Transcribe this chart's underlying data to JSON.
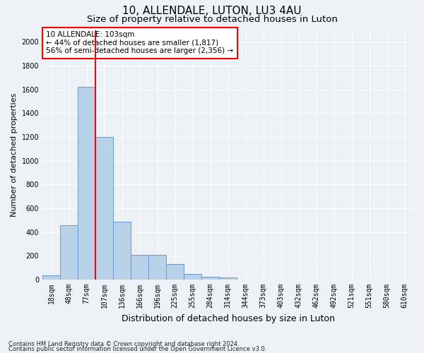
{
  "title1": "10, ALLENDALE, LUTON, LU3 4AU",
  "title2": "Size of property relative to detached houses in Luton",
  "xlabel": "Distribution of detached houses by size in Luton",
  "ylabel": "Number of detached properties",
  "categories": [
    "18sqm",
    "48sqm",
    "77sqm",
    "107sqm",
    "136sqm",
    "166sqm",
    "196sqm",
    "225sqm",
    "255sqm",
    "284sqm",
    "314sqm",
    "344sqm",
    "373sqm",
    "403sqm",
    "432sqm",
    "462sqm",
    "492sqm",
    "521sqm",
    "551sqm",
    "580sqm",
    "610sqm"
  ],
  "values": [
    35,
    460,
    1620,
    1200,
    490,
    210,
    210,
    130,
    50,
    25,
    18,
    0,
    0,
    0,
    0,
    0,
    0,
    0,
    0,
    0,
    0
  ],
  "bar_color": "#b8d0e8",
  "bar_edge_color": "#6699cc",
  "vline_color": "red",
  "annotation_text": "10 ALLENDALE: 103sqm\n← 44% of detached houses are smaller (1,817)\n56% of semi-detached houses are larger (2,356) →",
  "annotation_box_color": "white",
  "annotation_box_edge": "red",
  "ylim": [
    0,
    2100
  ],
  "yticks": [
    0,
    200,
    400,
    600,
    800,
    1000,
    1200,
    1400,
    1600,
    1800,
    2000
  ],
  "footer1": "Contains HM Land Registry data © Crown copyright and database right 2024.",
  "footer2": "Contains public sector information licensed under the Open Government Licence v3.0.",
  "bg_color": "#eef2f8",
  "grid_color": "#ffffff",
  "title1_fontsize": 11,
  "title2_fontsize": 9.5,
  "ylabel_fontsize": 8,
  "xlabel_fontsize": 9,
  "tick_fontsize": 7,
  "annotation_fontsize": 7.5,
  "footer_fontsize": 6
}
